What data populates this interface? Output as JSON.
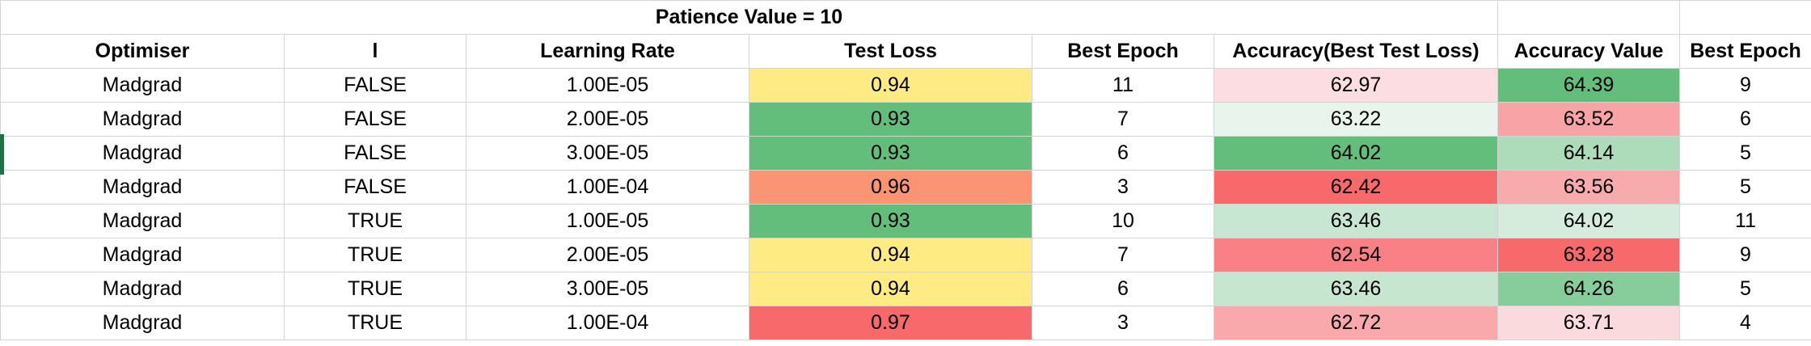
{
  "sheet": {
    "title": "Patience Value = 10",
    "headers": [
      "Optimiser",
      "l",
      "Learning Rate",
      "Test Loss",
      "Best Epoch",
      "Accuracy(Best Test Loss)",
      "Accuracy Value",
      "Best Epoch"
    ],
    "rows": [
      [
        "Madgrad",
        "FALSE",
        "1.00E-05",
        "0.94",
        "11",
        "62.97",
        "64.39",
        "9"
      ],
      [
        "Madgrad",
        "FALSE",
        "2.00E-05",
        "0.93",
        "7",
        "63.22",
        "63.52",
        "6"
      ],
      [
        "Madgrad",
        "FALSE",
        "3.00E-05",
        "0.93",
        "6",
        "64.02",
        "64.14",
        "5"
      ],
      [
        "Madgrad",
        "FALSE",
        "1.00E-04",
        "0.96",
        "3",
        "62.42",
        "63.56",
        "5"
      ],
      [
        "Madgrad",
        "TRUE",
        "1.00E-05",
        "0.93",
        "10",
        "63.46",
        "64.02",
        "11"
      ],
      [
        "Madgrad",
        "TRUE",
        "2.00E-05",
        "0.94",
        "7",
        "62.54",
        "63.28",
        "9"
      ],
      [
        "Madgrad",
        "TRUE",
        "3.00E-05",
        "0.94",
        "6",
        "63.46",
        "64.26",
        "5"
      ],
      [
        "Madgrad",
        "TRUE",
        "1.00E-04",
        "0.97",
        "3",
        "62.72",
        "63.71",
        "4"
      ]
    ],
    "cell_colors": {
      "test_loss": [
        "#ffeb84",
        "#63be7b",
        "#63be7b",
        "#fa9473",
        "#63be7b",
        "#ffeb84",
        "#ffeb84",
        "#f8696b"
      ],
      "acc_best": [
        "#fcdde1",
        "#e8f4ec",
        "#63be7b",
        "#f8696b",
        "#c7e7d2",
        "#f98185",
        "#c6e6d0",
        "#f9a8ab"
      ],
      "acc_value": [
        "#63be7b",
        "#f8a3a5",
        "#acdcb9",
        "#f8abad",
        "#d5ecdd",
        "#f8696b",
        "#87cd9b",
        "#fbdadd"
      ]
    },
    "selection_marker_color": "#1e7145"
  }
}
